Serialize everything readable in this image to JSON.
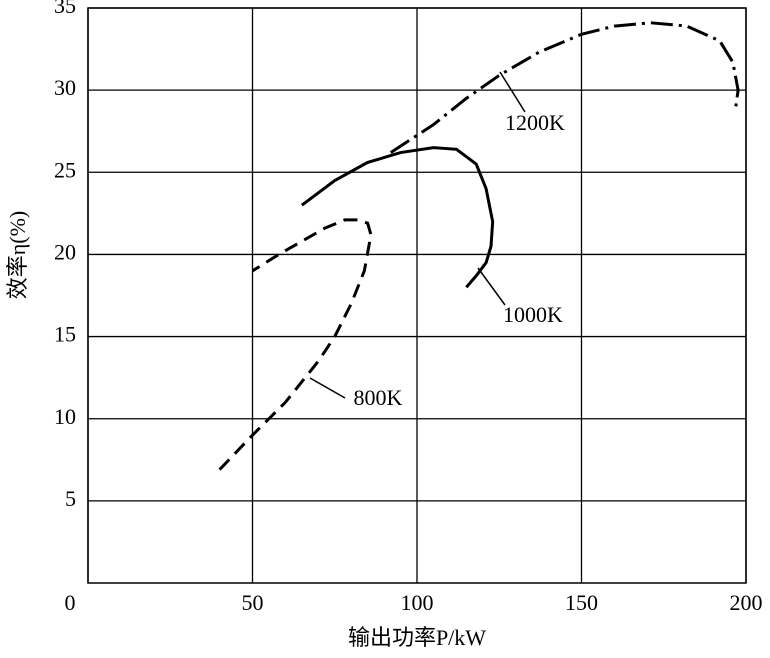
{
  "chart_data": {
    "type": "line",
    "x_label": "输出功率P/kW",
    "y_label": "效率η(%)",
    "xlim": [
      0,
      200
    ],
    "ylim": [
      0,
      35
    ],
    "xticks": [
      0,
      50,
      100,
      150,
      200
    ],
    "yticks": [
      5,
      10,
      15,
      20,
      25,
      30,
      35
    ],
    "grid": true,
    "series": [
      {
        "name": "800K",
        "color": "#000000",
        "dash": "dashed",
        "x": [
          40,
          50,
          60,
          70,
          75,
          80,
          84,
          86,
          85,
          82,
          78,
          72,
          65,
          58,
          50
        ],
        "values": [
          6.9,
          9,
          11,
          13.5,
          15,
          17,
          19,
          21.2,
          21.9,
          22.1,
          22.1,
          21.6,
          20.8,
          20,
          19
        ]
      },
      {
        "name": "1000K",
        "color": "#000000",
        "dash": "solid",
        "x": [
          65,
          75,
          85,
          95,
          105,
          112,
          118,
          121,
          123,
          122.5,
          121,
          118,
          115
        ],
        "values": [
          23,
          24.5,
          25.6,
          26.2,
          26.5,
          26.4,
          25.5,
          24,
          22,
          20.5,
          19.5,
          18.7,
          18
        ]
      },
      {
        "name": "1200K",
        "color": "#000000",
        "dash": "dashdot",
        "x": [
          92,
          105,
          115,
          125,
          137,
          150,
          160,
          171,
          182,
          192,
          196,
          197.6,
          196.7
        ],
        "values": [
          26.2,
          27.9,
          29.5,
          30.9,
          32.3,
          33.4,
          33.9,
          34.1,
          33.9,
          33,
          31.7,
          30,
          28.7
        ]
      }
    ]
  }
}
